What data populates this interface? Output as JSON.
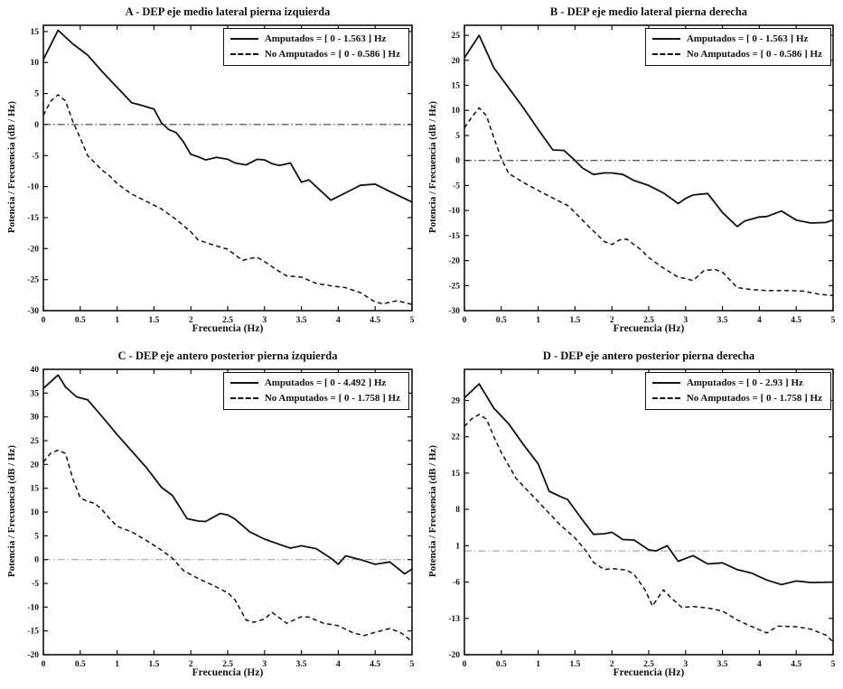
{
  "axis_color": "#111111",
  "xlabel": "Frecuencia (Hz)",
  "ylabel": "Potencia / Frecuencia (dB / Hz)",
  "chart_data": [
    {
      "type": "line",
      "title": "A - DEP eje medio lateral pierna izquierda",
      "xlabel": "Frecuencia (Hz)",
      "ylabel": "Potencia / Frecuencia (dB / Hz)",
      "xlim": [
        0,
        5
      ],
      "ylim": [
        -30,
        16
      ],
      "xticks": [
        "0",
        "0.5",
        "1",
        "1.5",
        "2",
        "2.5",
        "3",
        "3.5",
        "4",
        "4.5",
        "5"
      ],
      "yticks": [
        "15",
        "10",
        "5",
        "0",
        "-5",
        "-10",
        "-15",
        "-20",
        "-25",
        "-30"
      ],
      "grid": false,
      "legend_position": "top-right",
      "zero_line": 0,
      "zero_line_color": "#222222",
      "series": [
        {
          "name": "Amputados",
          "style": "solid",
          "legend_label": "Amputados = [ 0 - 1.563 ] Hz",
          "x": [
            0,
            0.2,
            0.4,
            0.6,
            0.8,
            1.0,
            1.2,
            1.3,
            1.5,
            1.6,
            1.7,
            1.8,
            1.9,
            2.0,
            2.1,
            2.2,
            2.35,
            2.5,
            2.6,
            2.75,
            2.9,
            3.0,
            3.1,
            3.2,
            3.35,
            3.5,
            3.6,
            3.9,
            4.1,
            4.3,
            4.5,
            4.7,
            5.0
          ],
          "y": [
            10.5,
            15.2,
            13.0,
            11.2,
            8.5,
            6.0,
            3.5,
            3.2,
            2.5,
            0.3,
            -0.8,
            -1.3,
            -2.8,
            -4.8,
            -5.2,
            -5.7,
            -5.3,
            -5.6,
            -6.2,
            -6.5,
            -5.6,
            -5.7,
            -6.3,
            -6.6,
            -6.2,
            -9.3,
            -8.9,
            -12.2,
            -11.0,
            -9.8,
            -9.6,
            -10.8,
            -12.5
          ]
        },
        {
          "name": "No Amputados",
          "style": "dashed",
          "legend_label": "No Amputados = [ 0 - 0.586 ] Hz",
          "x": [
            0,
            0.1,
            0.2,
            0.3,
            0.4,
            0.5,
            0.6,
            0.7,
            0.8,
            0.9,
            1.0,
            1.1,
            1.2,
            1.4,
            1.6,
            1.8,
            2.0,
            2.1,
            2.3,
            2.5,
            2.7,
            2.8,
            2.9,
            3.0,
            3.2,
            3.3,
            3.5,
            3.7,
            3.9,
            4.1,
            4.3,
            4.5,
            4.6,
            4.8,
            5.0
          ],
          "y": [
            1.5,
            3.8,
            4.8,
            3.8,
            0.5,
            -2.2,
            -5.0,
            -6.2,
            -7.4,
            -8.3,
            -9.5,
            -10.4,
            -11.2,
            -12.4,
            -13.6,
            -15.3,
            -17.3,
            -18.6,
            -19.4,
            -20.1,
            -21.9,
            -21.6,
            -21.4,
            -22.1,
            -23.7,
            -24.4,
            -24.6,
            -25.6,
            -26.0,
            -26.3,
            -27.1,
            -28.6,
            -28.9,
            -28.4,
            -29.0
          ]
        }
      ]
    },
    {
      "type": "line",
      "title": "B - DEP eje medio lateral pierna derecha",
      "xlabel": "Frecuencia (Hz)",
      "ylabel": "Potencia / Frecuencia (dB / Hz)",
      "xlim": [
        0,
        5
      ],
      "ylim": [
        -30,
        27
      ],
      "xticks": [
        "0",
        "0.5",
        "1",
        "1.5",
        "2",
        "2.5",
        "3",
        "3.5",
        "4",
        "4.5",
        "5"
      ],
      "yticks": [
        "25",
        "20",
        "15",
        "10",
        "5",
        "0",
        "-5",
        "-10",
        "-15",
        "-20",
        "-25",
        "-30"
      ],
      "grid": false,
      "legend_position": "top-right",
      "zero_line": 0,
      "zero_line_color": "#222222",
      "series": [
        {
          "name": "Amputados",
          "style": "solid",
          "legend_label": "Amputados = [ 0 - 1.563 ] Hz",
          "x": [
            0,
            0.2,
            0.4,
            0.6,
            0.8,
            1.0,
            1.2,
            1.35,
            1.5,
            1.6,
            1.75,
            1.9,
            2.0,
            2.15,
            2.3,
            2.5,
            2.7,
            2.9,
            3.0,
            3.1,
            3.3,
            3.5,
            3.7,
            3.8,
            4.0,
            4.1,
            4.3,
            4.5,
            4.7,
            4.9,
            5.0
          ],
          "y": [
            20.5,
            25.0,
            18.5,
            14.5,
            10.5,
            6.2,
            2.1,
            2.0,
            0.0,
            -1.5,
            -2.8,
            -2.5,
            -2.5,
            -2.8,
            -4.0,
            -5.0,
            -6.5,
            -8.6,
            -7.6,
            -6.9,
            -6.6,
            -10.4,
            -13.2,
            -12.1,
            -11.3,
            -11.2,
            -10.1,
            -11.9,
            -12.5,
            -12.4,
            -11.9
          ]
        },
        {
          "name": "No Amputados",
          "style": "dashed",
          "legend_label": "No Amputados = [ 0 - 0.586 ] Hz",
          "x": [
            0,
            0.1,
            0.2,
            0.3,
            0.4,
            0.5,
            0.6,
            0.8,
            1.0,
            1.2,
            1.4,
            1.5,
            1.7,
            1.9,
            2.0,
            2.1,
            2.2,
            2.4,
            2.5,
            2.7,
            2.9,
            3.0,
            3.1,
            3.25,
            3.4,
            3.5,
            3.7,
            3.9,
            4.1,
            4.4,
            4.6,
            4.8,
            5.0
          ],
          "y": [
            6.5,
            8.7,
            10.5,
            8.9,
            4.5,
            0.4,
            -2.6,
            -4.4,
            -6.0,
            -7.5,
            -9.0,
            -10.4,
            -13.4,
            -16.2,
            -16.8,
            -15.9,
            -15.7,
            -17.9,
            -19.4,
            -21.5,
            -23.3,
            -23.6,
            -24.0,
            -22.0,
            -21.8,
            -22.3,
            -25.4,
            -25.8,
            -26.0,
            -26.0,
            -26.1,
            -26.7,
            -27.0
          ]
        }
      ]
    },
    {
      "type": "line",
      "title": "C - DEP eje antero posterior pierna izquierda",
      "xlabel": "Frecuencia (Hz)",
      "ylabel": "Potencia / Frecuencia (dB / Hz)",
      "xlim": [
        0,
        5
      ],
      "ylim": [
        -20,
        40
      ],
      "xticks": [
        "0",
        "0.5",
        "1",
        "1.5",
        "2",
        "2.5",
        "3",
        "3.5",
        "4",
        "4.5",
        "5"
      ],
      "yticks": [
        "40",
        "35",
        "30",
        "25",
        "20",
        "15",
        "10",
        "5",
        "0",
        "-5",
        "-10",
        "-15",
        "-20"
      ],
      "grid": false,
      "legend_position": "top-right",
      "zero_line": 0,
      "zero_line_color": "#999999",
      "series": [
        {
          "name": "Amputados",
          "style": "solid",
          "legend_label": "Amputados = [ 0 - 4.492 ] Hz",
          "x": [
            0,
            0.2,
            0.3,
            0.45,
            0.6,
            0.8,
            1.0,
            1.2,
            1.4,
            1.6,
            1.75,
            1.95,
            2.1,
            2.2,
            2.4,
            2.5,
            2.6,
            2.8,
            3.0,
            3.2,
            3.35,
            3.5,
            3.7,
            3.9,
            4.0,
            4.1,
            4.3,
            4.5,
            4.7,
            4.9,
            5.0
          ],
          "y": [
            36.0,
            38.8,
            36.3,
            34.2,
            33.6,
            30.0,
            26.3,
            22.8,
            19.3,
            15.2,
            13.5,
            8.6,
            8.1,
            8.0,
            9.7,
            9.4,
            8.5,
            5.8,
            4.3,
            3.2,
            2.4,
            2.9,
            2.3,
            0.3,
            -1.0,
            0.8,
            0.0,
            -1.0,
            -0.5,
            -3.0,
            -2.0
          ]
        },
        {
          "name": "No Amputados",
          "style": "dashed",
          "legend_label": "No Amputados = [ 0 - 1.758 ] Hz",
          "x": [
            0,
            0.1,
            0.2,
            0.3,
            0.4,
            0.5,
            0.6,
            0.7,
            0.8,
            0.9,
            1.0,
            1.2,
            1.4,
            1.6,
            1.75,
            1.9,
            2.1,
            2.3,
            2.5,
            2.6,
            2.75,
            2.85,
            3.0,
            3.1,
            3.3,
            3.5,
            3.6,
            3.8,
            4.0,
            4.2,
            4.35,
            4.5,
            4.7,
            4.85,
            5.0
          ],
          "y": [
            20.5,
            22.4,
            23.0,
            22.3,
            17.0,
            13.0,
            12.2,
            11.8,
            10.4,
            8.6,
            7.0,
            5.8,
            4.0,
            2.0,
            0.3,
            -2.3,
            -4.0,
            -5.4,
            -7.0,
            -8.5,
            -12.7,
            -13.2,
            -12.5,
            -11.1,
            -13.4,
            -12.0,
            -12.1,
            -13.4,
            -13.9,
            -15.4,
            -16.0,
            -15.3,
            -14.5,
            -15.4,
            -17.2
          ]
        }
      ]
    },
    {
      "type": "line",
      "title": "D - DEP eje antero posterior pierna derecha",
      "xlabel": "Frecuencia (Hz)",
      "ylabel": "Potencia / Frecuencia (dB / Hz)",
      "xlim": [
        0,
        5
      ],
      "ylim": [
        -20,
        35
      ],
      "xticks": [
        "0",
        "0.5",
        "1",
        "1.5",
        "2",
        "2.5",
        "3",
        "3.5",
        "4",
        "4.5",
        "5"
      ],
      "yticks": [
        "29",
        "22",
        "15",
        "8",
        "1",
        "-6",
        "-13",
        "-20"
      ],
      "grid": false,
      "legend_position": "top-right",
      "zero_line": 0,
      "zero_line_color": "#999999",
      "series": [
        {
          "name": "Amputados",
          "style": "solid",
          "legend_label": "Amputados = [ 0 - 2.93 ] Hz",
          "x": [
            0,
            0.2,
            0.4,
            0.6,
            0.8,
            1.0,
            1.15,
            1.3,
            1.4,
            1.6,
            1.75,
            1.9,
            2.0,
            2.15,
            2.3,
            2.5,
            2.6,
            2.75,
            2.9,
            3.1,
            3.3,
            3.5,
            3.7,
            3.9,
            4.1,
            4.3,
            4.5,
            4.7,
            5.0
          ],
          "y": [
            29.5,
            32.2,
            27.5,
            24.5,
            20.5,
            16.8,
            11.5,
            10.5,
            9.9,
            6.0,
            3.2,
            3.3,
            3.6,
            2.2,
            2.1,
            0.2,
            0.0,
            1.0,
            -2.0,
            -0.9,
            -2.5,
            -2.3,
            -3.6,
            -4.3,
            -5.6,
            -6.5,
            -5.8,
            -6.1,
            -6.0
          ]
        },
        {
          "name": "No Amputados",
          "style": "dashed",
          "legend_label": "No Amputados = [ 0 - 1.758 ] Hz",
          "x": [
            0,
            0.1,
            0.2,
            0.3,
            0.4,
            0.5,
            0.7,
            0.9,
            1.1,
            1.3,
            1.5,
            1.65,
            1.75,
            1.9,
            2.0,
            2.2,
            2.3,
            2.45,
            2.55,
            2.7,
            2.8,
            2.95,
            3.1,
            3.3,
            3.5,
            3.7,
            3.9,
            4.1,
            4.25,
            4.5,
            4.7,
            4.9,
            5.0
          ],
          "y": [
            24.0,
            25.5,
            26.3,
            25.4,
            22.0,
            19.0,
            14.0,
            11.0,
            8.0,
            5.0,
            2.5,
            0.0,
            -2.2,
            -3.6,
            -3.4,
            -3.7,
            -4.5,
            -7.5,
            -10.6,
            -7.5,
            -9.0,
            -10.9,
            -10.7,
            -11.0,
            -11.6,
            -13.3,
            -14.6,
            -15.8,
            -14.5,
            -14.6,
            -15.1,
            -16.2,
            -17.5
          ]
        }
      ]
    }
  ]
}
